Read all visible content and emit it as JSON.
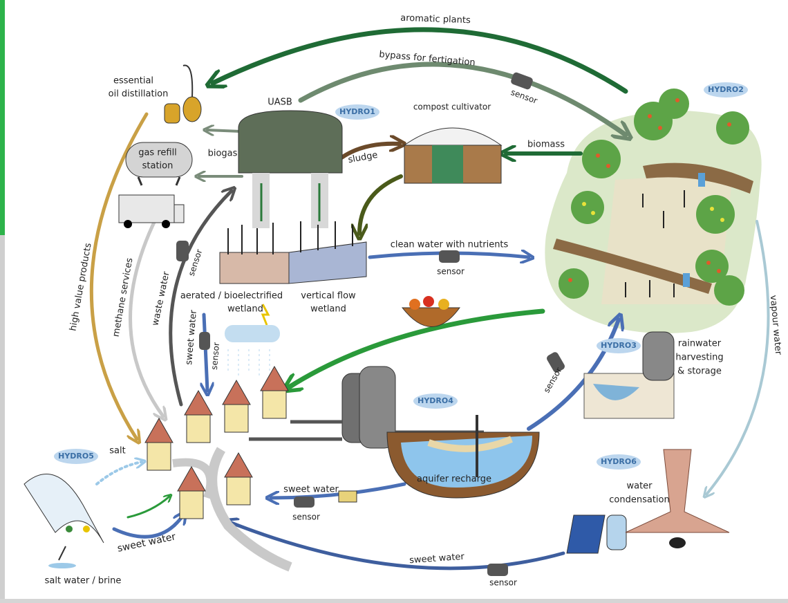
{
  "badges": [
    "HYDRO1",
    "HYDRO2",
    "HYDRO3",
    "HYDRO4",
    "HYDRO5",
    "HYDRO6"
  ],
  "components": {
    "uasb": "UASB",
    "compost": "compost cultivator",
    "distillation": [
      "essential",
      "oil distillation"
    ],
    "gas_station": [
      "gas refill",
      "station"
    ],
    "wetland_aerated": [
      "aerated / bioelectrified",
      "wetland"
    ],
    "wetland_vertical": [
      "vertical flow",
      "wetland"
    ],
    "rainwater": [
      "rainwater",
      "harvesting",
      "& storage"
    ],
    "aquifer": "aquifer recharge",
    "condensation": [
      "water",
      "condensation"
    ],
    "brine": "salt water / brine"
  },
  "flows": [
    {
      "label": "aromatic plants"
    },
    {
      "label": "bypass for fertigation",
      "sensor": "sensor"
    },
    {
      "label": "biogas"
    },
    {
      "label": "sludge"
    },
    {
      "label": "biomass"
    },
    {
      "label": "clean water with nutrients",
      "sensor": "sensor"
    },
    {
      "label": "high value products"
    },
    {
      "label": "methane services"
    },
    {
      "label": "waste water",
      "sensor": "sensor"
    },
    {
      "label": "sweet water",
      "sensor": "sensor"
    },
    {
      "label": "vapour water"
    },
    {
      "sensor": "sensor"
    },
    {
      "label": "salt"
    },
    {
      "label": "sweet water",
      "sensor": "sensor"
    },
    {
      "label": "sweet water"
    },
    {
      "label": "sweet water",
      "sensor": "sensor"
    }
  ]
}
